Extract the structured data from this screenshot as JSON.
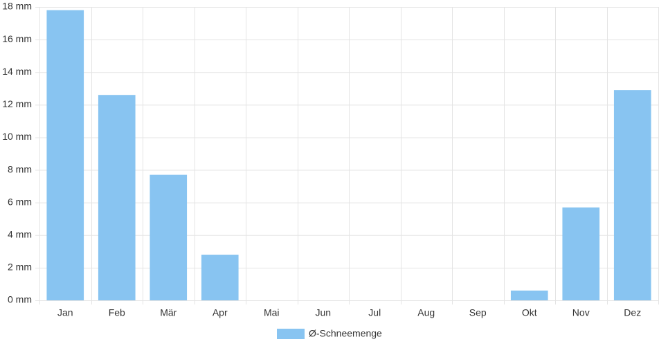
{
  "chart_data": {
    "type": "bar",
    "categories": [
      "Jan",
      "Feb",
      "Mär",
      "Apr",
      "Mai",
      "Jun",
      "Jul",
      "Aug",
      "Sep",
      "Okt",
      "Nov",
      "Dez"
    ],
    "series": [
      {
        "name": "Ø-Schneemenge",
        "color": "#88c4f1",
        "values": [
          17.8,
          12.6,
          7.7,
          2.8,
          0,
          0,
          0,
          0,
          0,
          0.6,
          5.7,
          12.9
        ]
      }
    ],
    "ylim": [
      0,
      18
    ],
    "yticks": [
      {
        "value": 0,
        "label": "0 mm"
      },
      {
        "value": 2,
        "label": "2 mm"
      },
      {
        "value": 4,
        "label": "4 mm"
      },
      {
        "value": 6,
        "label": "6 mm"
      },
      {
        "value": 8,
        "label": "8 mm"
      },
      {
        "value": 10,
        "label": "10 mm"
      },
      {
        "value": 12,
        "label": "12 mm"
      },
      {
        "value": 14,
        "label": "14 mm"
      },
      {
        "value": 16,
        "label": "16 mm"
      },
      {
        "value": 18,
        "label": "18 mm"
      }
    ],
    "grid": true,
    "legend": "bottom"
  }
}
